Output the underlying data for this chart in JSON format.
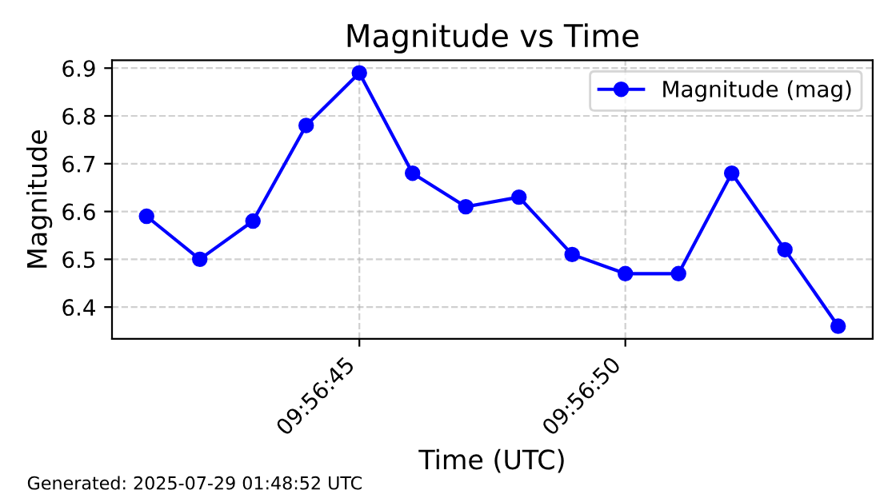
{
  "chart_data": {
    "type": "line",
    "title": "Magnitude vs Time",
    "xlabel": "Time (UTC)",
    "ylabel": "Magnitude",
    "x": [
      "2025-07-29T09:56:41",
      "2025-07-29T09:56:42",
      "2025-07-29T09:56:43",
      "2025-07-29T09:56:44",
      "2025-07-29T09:56:45",
      "2025-07-29T09:56:46",
      "2025-07-29T09:56:47",
      "2025-07-29T09:56:48",
      "2025-07-29T09:56:49",
      "2025-07-29T09:56:50",
      "2025-07-29T09:56:51",
      "2025-07-29T09:56:52",
      "2025-07-29T09:56:53",
      "2025-07-29T09:56:54"
    ],
    "series": [
      {
        "name": "Magnitude (mag)",
        "color": "#0000ff",
        "values": [
          6.59,
          6.5,
          6.58,
          6.78,
          6.89,
          6.68,
          6.61,
          6.63,
          6.51,
          6.47,
          6.47,
          6.68,
          6.52,
          6.36
        ]
      }
    ],
    "xlim": [
      "2025-07-29T09:56:40.35",
      "2025-07-29T09:56:54.65"
    ],
    "xticks": [
      {
        "value": "2025-07-29T09:56:45",
        "label": "09:56:45"
      },
      {
        "value": "2025-07-29T09:56:50",
        "label": "09:56:50"
      }
    ],
    "ylim": [
      6.3335,
      6.9165
    ],
    "yticks": [
      6.4,
      6.5,
      6.6,
      6.7,
      6.8,
      6.9
    ],
    "grid": true,
    "legend": "top right",
    "marker": "circle",
    "line_style": "solid",
    "annotations": [
      "Generated: 2025-07-29 01:48:52 UTC"
    ]
  }
}
